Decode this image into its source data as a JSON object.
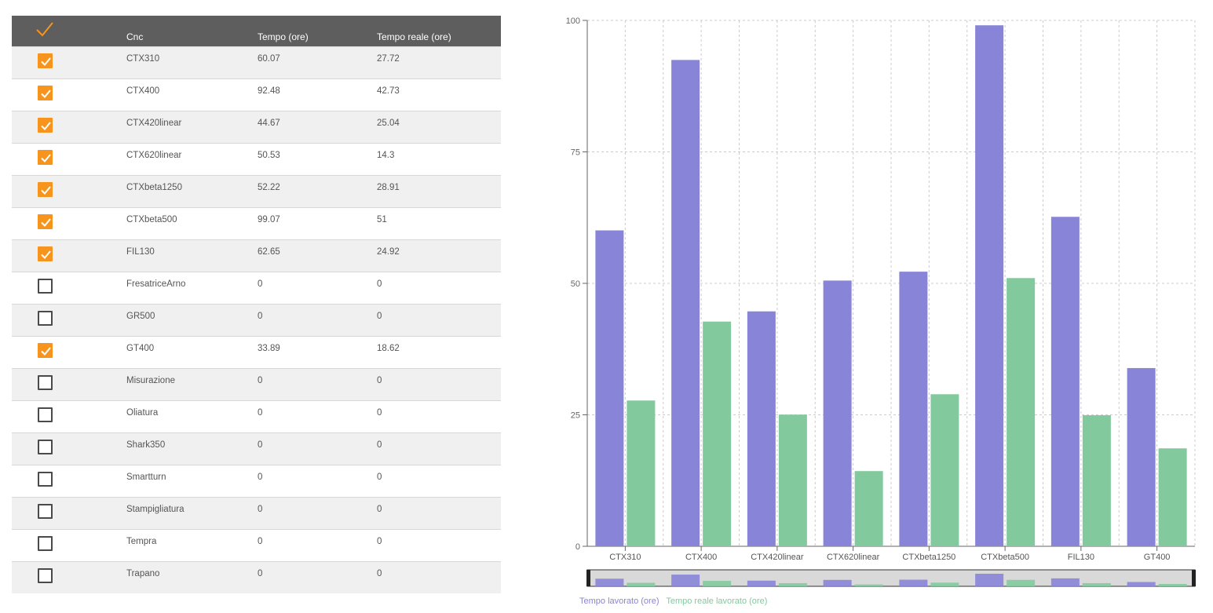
{
  "table": {
    "headers": {
      "cnc": "Cnc",
      "tempo": "Tempo (ore)",
      "tempo_reale": "Tempo reale (ore)"
    },
    "rows": [
      {
        "name": "CTX310",
        "tempo": "60.07",
        "tempo_reale": "27.72",
        "checked": true
      },
      {
        "name": "CTX400",
        "tempo": "92.48",
        "tempo_reale": "42.73",
        "checked": true
      },
      {
        "name": "CTX420linear",
        "tempo": "44.67",
        "tempo_reale": "25.04",
        "checked": true
      },
      {
        "name": "CTX620linear",
        "tempo": "50.53",
        "tempo_reale": "14.3",
        "checked": true
      },
      {
        "name": "CTXbeta1250",
        "tempo": "52.22",
        "tempo_reale": "28.91",
        "checked": true
      },
      {
        "name": "CTXbeta500",
        "tempo": "99.07",
        "tempo_reale": "51",
        "checked": true
      },
      {
        "name": "FIL130",
        "tempo": "62.65",
        "tempo_reale": "24.92",
        "checked": true
      },
      {
        "name": "FresatriceArno",
        "tempo": "0",
        "tempo_reale": "0",
        "checked": false
      },
      {
        "name": "GR500",
        "tempo": "0",
        "tempo_reale": "0",
        "checked": false
      },
      {
        "name": "GT400",
        "tempo": "33.89",
        "tempo_reale": "18.62",
        "checked": true
      },
      {
        "name": "Misurazione",
        "tempo": "0",
        "tempo_reale": "0",
        "checked": false
      },
      {
        "name": "Oliatura",
        "tempo": "0",
        "tempo_reale": "0",
        "checked": false
      },
      {
        "name": "Shark350",
        "tempo": "0",
        "tempo_reale": "0",
        "checked": false
      },
      {
        "name": "Smartturn",
        "tempo": "0",
        "tempo_reale": "0",
        "checked": false
      },
      {
        "name": "Stampigliatura",
        "tempo": "0",
        "tempo_reale": "0",
        "checked": false
      },
      {
        "name": "Tempra",
        "tempo": "0",
        "tempo_reale": "0",
        "checked": false
      },
      {
        "name": "Trapano",
        "tempo": "0",
        "tempo_reale": "0",
        "checked": false
      }
    ]
  },
  "colors": {
    "accent": "#f7941d",
    "header_bg": "#5e5e5e",
    "series1": "#8884d8",
    "series2": "#82ca9d"
  },
  "icons": {
    "header_check": "check-icon",
    "row_check": "checkbox-icon"
  },
  "chart_data": {
    "type": "bar",
    "categories": [
      "CTX310",
      "CTX400",
      "CTX420linear",
      "CTX620linear",
      "CTXbeta1250",
      "CTXbeta500",
      "FIL130",
      "GT400"
    ],
    "series": [
      {
        "name": "Tempo lavorato (ore)",
        "values": [
          60.07,
          92.48,
          44.67,
          50.53,
          52.22,
          99.07,
          62.65,
          33.89
        ]
      },
      {
        "name": "Tempo reale lavorato (ore)",
        "values": [
          27.72,
          42.73,
          25.04,
          14.3,
          28.91,
          51,
          24.92,
          18.62
        ]
      }
    ],
    "yticks": [
      "0",
      "25",
      "50",
      "75",
      "100"
    ],
    "ylim": [
      0,
      100
    ],
    "grid": true,
    "legend": "bottom-left",
    "brush": true
  }
}
